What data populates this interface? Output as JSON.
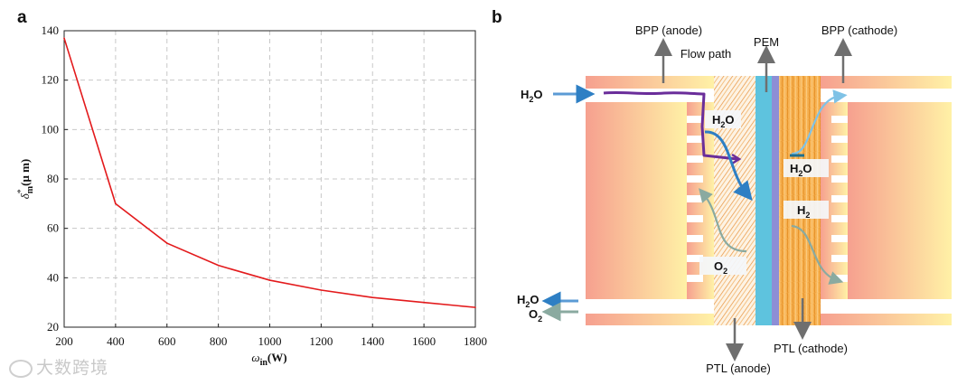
{
  "panels": {
    "a": "a",
    "b": "b"
  },
  "chart_data": {
    "type": "line",
    "x": [
      200,
      400,
      600,
      800,
      1000,
      1200,
      1400,
      1600,
      1800
    ],
    "series": [
      {
        "name": "delta_m",
        "color": "#e31a1c",
        "values": [
          137,
          70,
          54,
          45,
          39,
          35,
          32,
          30,
          28
        ]
      }
    ],
    "xlim": [
      200,
      1800
    ],
    "ylim": [
      20,
      140
    ],
    "xticks": [
      200,
      400,
      600,
      800,
      1000,
      1200,
      1400,
      1600,
      1800
    ],
    "yticks": [
      20,
      40,
      60,
      80,
      100,
      120,
      140
    ],
    "xlabel": {
      "symbol": "ω",
      "sub": "in",
      "unit": "(W)"
    },
    "ylabel": {
      "symbol": "δ",
      "sup": "*",
      "sub": "m",
      "unit": "(μ m)"
    },
    "grid": true
  },
  "schematic": {
    "labels": {
      "bpp_anode": "BPP (anode)",
      "pem": "PEM",
      "bpp_cathode": "BPP (cathode)",
      "flow_path": "Flow path",
      "ptl_anode": "PTL (anode)",
      "ptl_cathode": "PTL (cathode)"
    },
    "species": {
      "h2o_in": "H",
      "h2o_in_sub": "2",
      "h2o_in_tail": "O",
      "h2o_out": "H",
      "h2o_out_sub": "2",
      "h2o_out_tail": "O",
      "o2_out": "O",
      "o2_out_sub": "2",
      "h2o_anode": "H",
      "h2o_anode_sub": "2",
      "h2o_anode_tail": "O",
      "h2o_cathode": "H",
      "h2o_cathode_sub": "2",
      "h2o_cathode_tail": "O",
      "h2_cathode": "H",
      "h2_cathode_sub": "2",
      "o2_anode": "O",
      "o2_anode_sub": "2"
    },
    "colors": {
      "bpp_light": "#fff1a6",
      "bpp_dark": "#f6a08f",
      "pem": "#5ec3de",
      "pem_edge": "#8d8ed6",
      "ptl": "#f6a23a",
      "flow_path": "#6a2d9a",
      "water_arrow": "#5b9bd5",
      "gas_arrow": "#8aaaa0"
    }
  },
  "watermark": "大数跨境"
}
